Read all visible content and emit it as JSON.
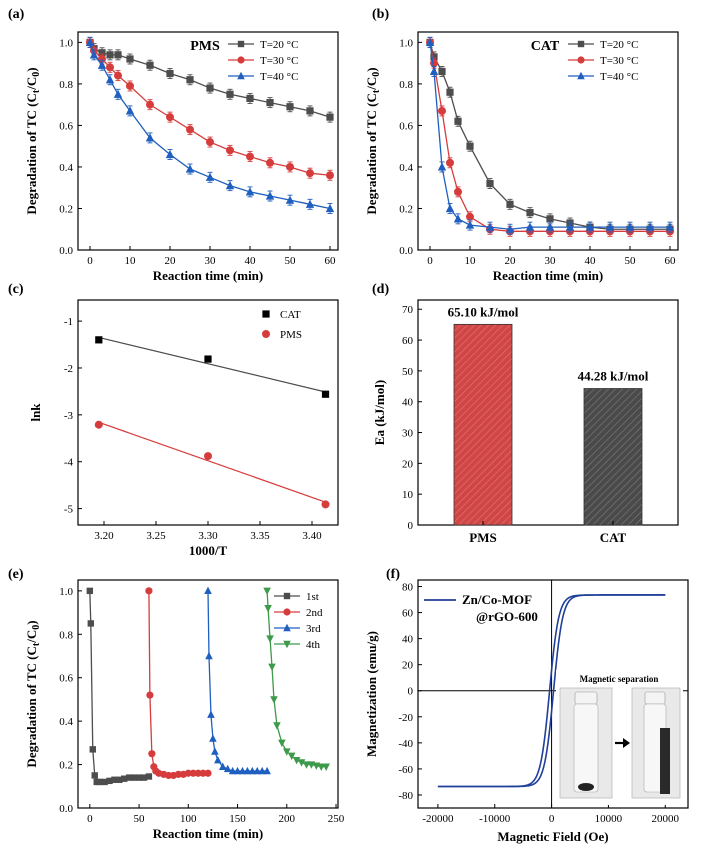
{
  "colors": {
    "gray": "#4d4d4d",
    "red": "#d63c3c",
    "blue": "#1f5fbf",
    "green": "#3d9a4a",
    "navy": "#1f3f99",
    "bar_red": "#d14545",
    "bar_gray": "#4a4a4a"
  },
  "chart_data": [
    {
      "panel": "(a)",
      "type": "line",
      "title": "PMS",
      "xlabel": "Reaction time (min)",
      "ylabel": "Degradation of TC (C_t/C_0)",
      "xlim": [
        -3,
        62
      ],
      "ylim": [
        0,
        1.05
      ],
      "xticks": [
        0,
        10,
        20,
        30,
        40,
        50,
        60
      ],
      "yticks": [
        0.0,
        0.2,
        0.4,
        0.6,
        0.8,
        1.0
      ],
      "xticklabels": [
        "0",
        "10",
        "20",
        "30",
        "40",
        "50",
        "60"
      ],
      "yticklabels": [
        "0.0",
        "0.2",
        "0.4",
        "0.6",
        "0.8",
        "1.0"
      ],
      "legend": "top-right",
      "error_bars": true,
      "x": [
        0,
        1,
        3,
        5,
        7,
        10,
        15,
        20,
        25,
        30,
        35,
        40,
        45,
        50,
        55,
        60
      ],
      "series": [
        {
          "name": "T=20 °C",
          "marker": "square",
          "color": "gray",
          "values": [
            1.0,
            0.97,
            0.95,
            0.94,
            0.94,
            0.92,
            0.89,
            0.85,
            0.82,
            0.78,
            0.75,
            0.73,
            0.71,
            0.69,
            0.67,
            0.64
          ]
        },
        {
          "name": "T=30 °C",
          "marker": "circle",
          "color": "red",
          "values": [
            1.0,
            0.96,
            0.92,
            0.88,
            0.84,
            0.79,
            0.7,
            0.64,
            0.58,
            0.52,
            0.48,
            0.45,
            0.42,
            0.4,
            0.37,
            0.36
          ]
        },
        {
          "name": "T=40 °C",
          "marker": "triangle",
          "color": "blue",
          "values": [
            1.0,
            0.94,
            0.89,
            0.82,
            0.75,
            0.67,
            0.54,
            0.46,
            0.39,
            0.35,
            0.31,
            0.28,
            0.26,
            0.24,
            0.22,
            0.2
          ]
        }
      ]
    },
    {
      "panel": "(b)",
      "type": "line",
      "title": "CAT",
      "xlabel": "Reaction time (min)",
      "ylabel": "Degradation of TC (C_t/C_0)",
      "xlim": [
        -3,
        62
      ],
      "ylim": [
        0,
        1.05
      ],
      "xticks": [
        0,
        10,
        20,
        30,
        40,
        50,
        60
      ],
      "yticks": [
        0.0,
        0.2,
        0.4,
        0.6,
        0.8,
        1.0
      ],
      "xticklabels": [
        "0",
        "10",
        "20",
        "30",
        "40",
        "50",
        "60"
      ],
      "yticklabels": [
        "0.0",
        "0.2",
        "0.4",
        "0.6",
        "0.8",
        "1.0"
      ],
      "legend": "top-right",
      "error_bars": true,
      "x": [
        0,
        1,
        3,
        5,
        7,
        10,
        15,
        20,
        25,
        30,
        35,
        40,
        45,
        50,
        55,
        60
      ],
      "series": [
        {
          "name": "T=20 °C",
          "marker": "square",
          "color": "gray",
          "values": [
            1.0,
            0.93,
            0.86,
            0.76,
            0.62,
            0.5,
            0.32,
            0.22,
            0.18,
            0.15,
            0.13,
            0.11,
            0.1,
            0.1,
            0.1,
            0.1
          ]
        },
        {
          "name": "T=30 °C",
          "marker": "circle",
          "color": "red",
          "values": [
            1.0,
            0.9,
            0.67,
            0.42,
            0.28,
            0.16,
            0.1,
            0.09,
            0.09,
            0.09,
            0.09,
            0.09,
            0.09,
            0.09,
            0.09,
            0.09
          ]
        },
        {
          "name": "T=40 °C",
          "marker": "triangle",
          "color": "blue",
          "values": [
            1.0,
            0.86,
            0.4,
            0.2,
            0.15,
            0.12,
            0.11,
            0.1,
            0.11,
            0.11,
            0.11,
            0.11,
            0.11,
            0.11,
            0.11,
            0.11
          ]
        }
      ]
    },
    {
      "panel": "(c)",
      "type": "scatter",
      "title": "",
      "xlabel": "1000/T",
      "ylabel": "lnk",
      "xlim": [
        3.175,
        3.425
      ],
      "ylim": [
        -5.35,
        -0.55
      ],
      "xticks": [
        3.2,
        3.25,
        3.3,
        3.35,
        3.4
      ],
      "yticks": [
        -5,
        -4,
        -3,
        -2,
        -1
      ],
      "xticklabels": [
        "3.20",
        "3.25",
        "3.30",
        "3.35",
        "3.40"
      ],
      "yticklabels": [
        "-5",
        "-4",
        "-3",
        "-2",
        "-1"
      ],
      "legend": "top-right",
      "fit_lines": true,
      "series": [
        {
          "name": "CAT",
          "marker": "square",
          "color": "gray",
          "x": [
            3.195,
            3.3,
            3.413
          ],
          "values": [
            -1.4,
            -1.81,
            -2.56
          ]
        },
        {
          "name": "PMS",
          "marker": "circle",
          "color": "red",
          "x": [
            3.195,
            3.3,
            3.413
          ],
          "values": [
            -3.21,
            -3.88,
            -4.91
          ]
        }
      ]
    },
    {
      "panel": "(d)",
      "type": "bar",
      "title": "",
      "xlabel": "",
      "ylabel": "Ea (kJ/mol)",
      "ylim": [
        0,
        73
      ],
      "yticks": [
        0,
        10,
        20,
        30,
        40,
        50,
        60,
        70
      ],
      "yticklabels": [
        "0",
        "10",
        "20",
        "30",
        "40",
        "50",
        "60",
        "70"
      ],
      "categories": [
        "PMS",
        "CAT"
      ],
      "values": [
        65.1,
        44.28
      ],
      "data_labels": [
        "65.10 kJ/mol",
        "44.28 kJ/mol"
      ],
      "bar_colors": [
        "bar_red",
        "bar_gray"
      ],
      "hatched": true
    },
    {
      "panel": "(e)",
      "type": "line",
      "title": "",
      "xlabel": "Reaction time (min)",
      "ylabel": "Degradation of TC (C_t/C_0)",
      "xlim": [
        -12,
        252
      ],
      "ylim": [
        0,
        1.05
      ],
      "xticks": [
        0,
        50,
        100,
        150,
        200,
        250
      ],
      "yticks": [
        0.0,
        0.2,
        0.4,
        0.6,
        0.8,
        1.0
      ],
      "xticklabels": [
        "0",
        "50",
        "100",
        "150",
        "200",
        "250"
      ],
      "yticklabels": [
        "0.0",
        "0.2",
        "0.4",
        "0.6",
        "0.8",
        "1.0"
      ],
      "legend": "top-right",
      "series": [
        {
          "name": "1st",
          "marker": "square",
          "color": "gray",
          "x": [
            0,
            1,
            3,
            5,
            7,
            10,
            15,
            20,
            25,
            30,
            35,
            40,
            45,
            50,
            55,
            60
          ],
          "values": [
            1.0,
            0.85,
            0.27,
            0.15,
            0.12,
            0.12,
            0.12,
            0.125,
            0.13,
            0.13,
            0.135,
            0.14,
            0.14,
            0.14,
            0.14,
            0.145
          ]
        },
        {
          "name": "2nd",
          "marker": "circle",
          "color": "red",
          "x": [
            60,
            61,
            63,
            65,
            67,
            70,
            75,
            80,
            85,
            90,
            95,
            100,
            105,
            110,
            115,
            120
          ],
          "values": [
            1.0,
            0.52,
            0.25,
            0.19,
            0.17,
            0.16,
            0.155,
            0.15,
            0.15,
            0.155,
            0.155,
            0.16,
            0.16,
            0.16,
            0.16,
            0.16
          ]
        },
        {
          "name": "3rd",
          "marker": "triangle",
          "color": "blue",
          "x": [
            120,
            121,
            123,
            125,
            127,
            130,
            135,
            140,
            145,
            150,
            155,
            160,
            165,
            170,
            175,
            180
          ],
          "values": [
            1.0,
            0.7,
            0.43,
            0.32,
            0.26,
            0.22,
            0.19,
            0.18,
            0.17,
            0.17,
            0.17,
            0.17,
            0.17,
            0.17,
            0.17,
            0.17
          ]
        },
        {
          "name": "4th",
          "marker": "triangle-down",
          "color": "green",
          "x": [
            180,
            181,
            183,
            185,
            187,
            190,
            195,
            200,
            205,
            210,
            215,
            220,
            225,
            230,
            235,
            240
          ],
          "values": [
            1.0,
            0.92,
            0.78,
            0.65,
            0.5,
            0.38,
            0.3,
            0.26,
            0.24,
            0.22,
            0.21,
            0.2,
            0.2,
            0.195,
            0.19,
            0.19
          ]
        }
      ]
    },
    {
      "panel": "(f)",
      "type": "line",
      "title": "",
      "xlabel": "Magnetic Field (Oe)",
      "ylabel": "Magnetization (emu/g)",
      "xlim": [
        -23500,
        24000
      ],
      "ylim": [
        -90,
        85
      ],
      "xticks": [
        -20000,
        -10000,
        0,
        10000,
        20000
      ],
      "yticks": [
        -80,
        -60,
        -40,
        -20,
        0,
        20,
        40,
        60,
        80
      ],
      "xticklabels": [
        "-20000",
        "-10000",
        "0",
        "10000",
        "20000"
      ],
      "yticklabels": [
        "-80",
        "-60",
        "-40",
        "-20",
        "0",
        "20",
        "40",
        "60",
        "80"
      ],
      "legend": "top-left",
      "zero_lines": true,
      "series": [
        {
          "name": "Zn/Co-MOF @rGO-600",
          "color": "navy",
          "ms": 73.5,
          "hc": 350,
          "width": 1600
        }
      ],
      "inset": {
        "title": "Magnetic separation",
        "photos": 2,
        "arrow": "right"
      }
    }
  ],
  "panel_labels": [
    "(a)",
    "(b)",
    "(c)",
    "(d)",
    "(e)",
    "(f)"
  ],
  "titles": {
    "a": "PMS",
    "b": "CAT"
  },
  "legend_f": [
    "Zn/Co-MOF",
    "@rGO-600"
  ],
  "inset_title": "Magnetic separation"
}
